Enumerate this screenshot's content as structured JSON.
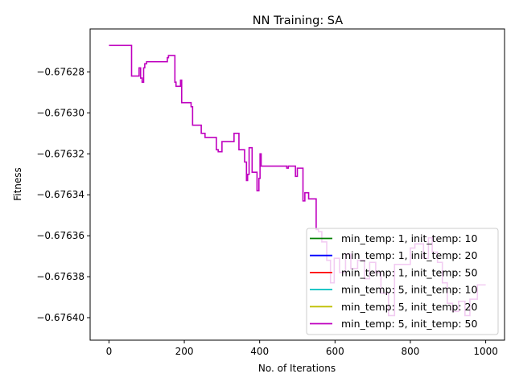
{
  "chart_data": {
    "type": "line",
    "title": "NN Training: SA",
    "xlabel": "No. of Iterations",
    "ylabel": "Fitness",
    "xlim": [
      -50,
      1050
    ],
    "ylim": [
      -0.676411,
      -0.676259
    ],
    "xticks": [
      0,
      200,
      400,
      600,
      800,
      1000
    ],
    "yticks": [
      -0.67628,
      -0.6763,
      -0.67632,
      -0.67634,
      -0.67636,
      -0.67638,
      -0.6764
    ],
    "ytick_labels": [
      "−0.67628",
      "−0.67630",
      "−0.67632",
      "−0.67634",
      "−0.67636",
      "−0.67638",
      "−0.67640"
    ],
    "legend_position": "lower-right",
    "series": [
      {
        "name": "min_temp: 1, init_temp: 10",
        "color": "#008000",
        "x": [],
        "y": []
      },
      {
        "name": "min_temp: 1, init_temp: 20",
        "color": "#0000ff",
        "x": [],
        "y": []
      },
      {
        "name": "min_temp: 1, init_temp: 50",
        "color": "#ff0000",
        "x": [],
        "y": []
      },
      {
        "name": "min_temp: 5, init_temp: 10",
        "color": "#00bfbf",
        "x": [],
        "y": []
      },
      {
        "name": "min_temp: 5, init_temp: 20",
        "color": "#bfbf00",
        "x": [],
        "y": []
      },
      {
        "name": "min_temp: 5, init_temp: 50",
        "color": "#bf00bf",
        "x": [
          0,
          60,
          60,
          80,
          80,
          84,
          84,
          88,
          88,
          92,
          92,
          95,
          95,
          100,
          100,
          155,
          155,
          158,
          158,
          175,
          175,
          178,
          178,
          190,
          190,
          193,
          193,
          196,
          196,
          218,
          218,
          222,
          222,
          245,
          245,
          255,
          255,
          265,
          265,
          285,
          285,
          290,
          290,
          300,
          300,
          310,
          310,
          332,
          332,
          345,
          345,
          360,
          360,
          365,
          365,
          368,
          368,
          372,
          372,
          380,
          380,
          385,
          385,
          393,
          393,
          398,
          398,
          401,
          401,
          404,
          404,
          407,
          407,
          472,
          472,
          476,
          476,
          495,
          495,
          500,
          500,
          510,
          510,
          515,
          515,
          520,
          520,
          530,
          530,
          545,
          545,
          550,
          550,
          556,
          556,
          565,
          565,
          578,
          578,
          588,
          588,
          598,
          598,
          612,
          612,
          628,
          628,
          642,
          642,
          660,
          660,
          678,
          678,
          692,
          692,
          708,
          708,
          722,
          722,
          742,
          742,
          758,
          758,
          775,
          775,
          800,
          800,
          812,
          812,
          835,
          835,
          848,
          848,
          858,
          858,
          872,
          872,
          885,
          885,
          898,
          898,
          912,
          912,
          928,
          928,
          945,
          945,
          958,
          958,
          978,
          978,
          1000
        ],
        "y": [
          -0.676267,
          -0.676267,
          -0.676282,
          -0.676282,
          -0.676278,
          -0.676278,
          -0.676283,
          -0.676283,
          -0.676285,
          -0.676285,
          -0.676278,
          -0.676278,
          -0.676276,
          -0.676276,
          -0.676275,
          -0.676275,
          -0.676273,
          -0.676273,
          -0.676272,
          -0.676272,
          -0.676285,
          -0.676285,
          -0.676287,
          -0.676287,
          -0.676284,
          -0.676284,
          -0.676295,
          -0.676295,
          -0.676295,
          -0.676295,
          -0.676297,
          -0.676297,
          -0.676306,
          -0.676306,
          -0.67631,
          -0.67631,
          -0.676312,
          -0.676312,
          -0.676312,
          -0.676312,
          -0.676318,
          -0.676318,
          -0.676319,
          -0.676319,
          -0.676314,
          -0.676314,
          -0.676314,
          -0.676314,
          -0.67631,
          -0.67631,
          -0.676318,
          -0.676318,
          -0.676324,
          -0.676324,
          -0.676333,
          -0.676333,
          -0.67633,
          -0.67633,
          -0.676317,
          -0.676317,
          -0.676329,
          -0.676329,
          -0.676329,
          -0.676329,
          -0.676338,
          -0.676338,
          -0.676332,
          -0.676332,
          -0.67632,
          -0.67632,
          -0.676326,
          -0.676326,
          -0.676326,
          -0.676326,
          -0.676327,
          -0.676327,
          -0.676326,
          -0.676326,
          -0.676331,
          -0.676331,
          -0.676327,
          -0.676327,
          -0.676327,
          -0.676327,
          -0.676343,
          -0.676343,
          -0.676339,
          -0.676339,
          -0.676342,
          -0.676342,
          -0.676342,
          -0.676342,
          -0.676357,
          -0.676357,
          -0.676358,
          -0.676358,
          -0.676363,
          -0.676363,
          -0.676372,
          -0.676372,
          -0.676383,
          -0.676383,
          -0.676371,
          -0.676371,
          -0.676378,
          -0.676378,
          -0.676369,
          -0.676369,
          -0.676376,
          -0.676376,
          -0.676372,
          -0.676372,
          -0.676381,
          -0.676381,
          -0.676373,
          -0.676373,
          -0.676378,
          -0.676378,
          -0.676388,
          -0.676388,
          -0.676399,
          -0.676399,
          -0.676374,
          -0.676374,
          -0.676374,
          -0.676374,
          -0.676366,
          -0.676366,
          -0.676364,
          -0.676364,
          -0.676371,
          -0.676371,
          -0.676361,
          -0.676361,
          -0.676368,
          -0.676368,
          -0.676373,
          -0.676373,
          -0.676383,
          -0.676383,
          -0.676393,
          -0.676393,
          -0.676397,
          -0.676397,
          -0.676392,
          -0.676392,
          -0.676399,
          -0.676399,
          -0.676391,
          -0.676391,
          -0.676384,
          -0.676384
        ]
      }
    ]
  }
}
